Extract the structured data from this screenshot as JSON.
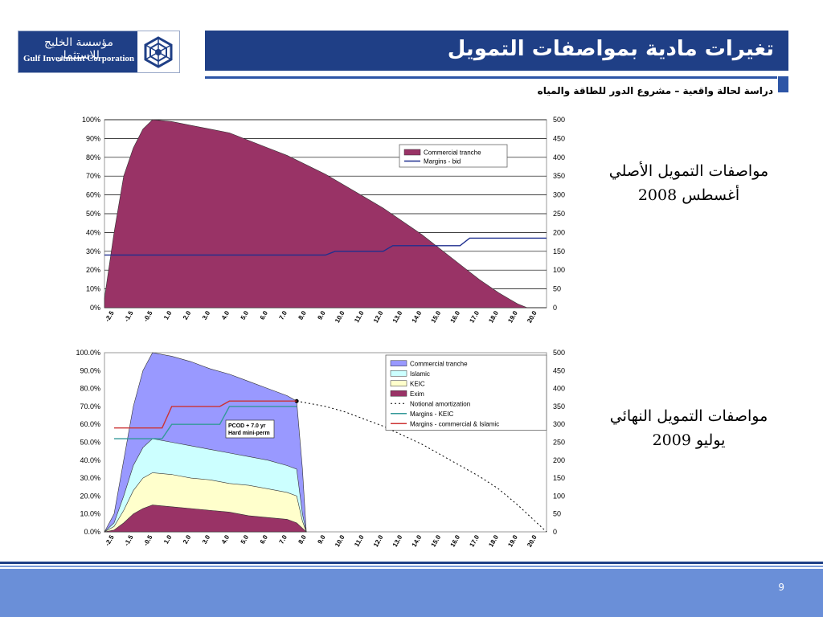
{
  "header": {
    "logo_arabic": "مؤسسة الخليج للاستثمار",
    "logo_english": "Gulf Investment Corporation",
    "title": "تغيرات مادية بمواصفات التمويل",
    "subtitle": "دراسة لحالة واقعية – مشروع الدور للطاقة والمياه"
  },
  "side_labels": {
    "original_line1": "مواصفات التمويل الأصلي",
    "original_line2": "أغسطس 2008",
    "final_line1": "مواصفات التمويل النهائي",
    "final_line2": "يوليو 2009"
  },
  "footer": {
    "page_number": "9"
  },
  "colors": {
    "navy": "#1f3f86",
    "accent": "#2d55a6",
    "footer": "#6a8fd8",
    "commercial_maroon": "#993366",
    "commercial_lavender": "#9999ff",
    "islamic": "#ccffff",
    "keic": "#ffffcc",
    "exim": "#993366"
  },
  "chart_data": [
    {
      "type": "area",
      "x_tick_labels": [
        "-2.5",
        "-1.5",
        "-0.5",
        "1.0",
        "2.0",
        "3.0",
        "4.0",
        "5.0",
        "6.0",
        "7.0",
        "8.0",
        "9.0",
        "10.0",
        "11.0",
        "12.0",
        "13.0",
        "14.0",
        "15.0",
        "16.0",
        "17.0",
        "18.0",
        "19.0",
        "20.0"
      ],
      "xlim": [
        -2.5,
        20.5
      ],
      "ylim_left": [
        0,
        100
      ],
      "y_ticks_left": [
        "0%",
        "10%",
        "20%",
        "30%",
        "40%",
        "50%",
        "60%",
        "70%",
        "80%",
        "90%",
        "100%"
      ],
      "ylim_right": [
        0,
        500
      ],
      "y_ticks_right": [
        "0",
        "50",
        "100",
        "150",
        "200",
        "250",
        "300",
        "350",
        "400",
        "450",
        "500"
      ],
      "legend_position": "top-right",
      "grid": "horizontal",
      "series": [
        {
          "name": "Commercial tranche",
          "kind": "area",
          "axis": "left",
          "color": "#993366",
          "points": [
            [
              -2.5,
              5
            ],
            [
              -2.0,
              40
            ],
            [
              -1.5,
              70
            ],
            [
              -1.0,
              85
            ],
            [
              -0.5,
              95
            ],
            [
              0.0,
              100
            ],
            [
              1.0,
              99
            ],
            [
              2.0,
              97
            ],
            [
              3.0,
              95
            ],
            [
              4.0,
              93
            ],
            [
              5.0,
              89
            ],
            [
              6.0,
              85
            ],
            [
              7.0,
              81
            ],
            [
              8.0,
              76
            ],
            [
              9.0,
              71
            ],
            [
              10.0,
              65
            ],
            [
              11.0,
              59
            ],
            [
              12.0,
              53
            ],
            [
              13.0,
              46
            ],
            [
              14.0,
              39
            ],
            [
              15.0,
              31
            ],
            [
              16.0,
              23
            ],
            [
              17.0,
              15
            ],
            [
              18.0,
              8
            ],
            [
              19.0,
              2
            ],
            [
              19.5,
              0
            ]
          ]
        },
        {
          "name": "Margins - bid",
          "kind": "line",
          "axis": "right",
          "color": "#1f2f8f",
          "points": [
            [
              -2.5,
              140
            ],
            [
              9.0,
              140
            ],
            [
              9.5,
              150
            ],
            [
              12.0,
              150
            ],
            [
              12.5,
              165
            ],
            [
              16.0,
              165
            ],
            [
              16.5,
              185
            ],
            [
              20.5,
              185
            ]
          ]
        }
      ]
    },
    {
      "type": "area",
      "x_tick_labels": [
        "-2.5",
        "-1.5",
        "-0.5",
        "1.0",
        "2.0",
        "3.0",
        "4.0",
        "5.0",
        "6.0",
        "7.0",
        "8.0",
        "9.0",
        "10.0",
        "11.0",
        "12.0",
        "13.0",
        "14.0",
        "15.0",
        "16.0",
        "17.0",
        "18.0",
        "19.0",
        "20.0"
      ],
      "xlim": [
        -2.5,
        20.5
      ],
      "ylim_left": [
        0,
        100
      ],
      "y_ticks_left": [
        "0.0%",
        "10.0%",
        "20.0%",
        "30.0%",
        "40.0%",
        "50.0%",
        "60.0%",
        "70.0%",
        "80.0%",
        "90.0%",
        "100.0%"
      ],
      "ylim_right": [
        0,
        500
      ],
      "y_ticks_right": [
        "0",
        "50",
        "100",
        "150",
        "200",
        "250",
        "300",
        "350",
        "400",
        "450",
        "500"
      ],
      "legend_position": "top-right",
      "grid": "none",
      "annotation": {
        "line1": "PCOD + 7.0 yr",
        "line2": "Hard mini-perm"
      },
      "series": [
        {
          "name": "Commercial tranche",
          "kind": "area",
          "axis": "left",
          "color": "#9999ff",
          "points": [
            [
              -2.5,
              0
            ],
            [
              -2.0,
              10
            ],
            [
              -1.5,
              40
            ],
            [
              -1.0,
              70
            ],
            [
              -0.5,
              90
            ],
            [
              0.0,
              100
            ],
            [
              1.0,
              98
            ],
            [
              2.0,
              95
            ],
            [
              3.0,
              91
            ],
            [
              4.0,
              88
            ],
            [
              5.0,
              84
            ],
            [
              6.0,
              80
            ],
            [
              7.0,
              76
            ],
            [
              7.5,
              73
            ],
            [
              7.8,
              35
            ],
            [
              8.0,
              0
            ]
          ]
        },
        {
          "name": "Islamic",
          "kind": "area",
          "axis": "left",
          "color": "#ccffff",
          "points": [
            [
              -2.5,
              0
            ],
            [
              -2.0,
              5
            ],
            [
              -1.5,
              20
            ],
            [
              -1.0,
              37
            ],
            [
              -0.5,
              47
            ],
            [
              0.0,
              52
            ],
            [
              1.0,
              50
            ],
            [
              2.0,
              48
            ],
            [
              3.0,
              46
            ],
            [
              4.0,
              44
            ],
            [
              5.0,
              42
            ],
            [
              6.0,
              40
            ],
            [
              7.0,
              37
            ],
            [
              7.5,
              35
            ],
            [
              7.8,
              10
            ],
            [
              8.0,
              0
            ]
          ]
        },
        {
          "name": "KEIC",
          "kind": "area",
          "axis": "left",
          "color": "#ffffcc",
          "points": [
            [
              -2.5,
              0
            ],
            [
              -2.0,
              3
            ],
            [
              -1.5,
              12
            ],
            [
              -1.0,
              23
            ],
            [
              -0.5,
              30
            ],
            [
              0.0,
              33
            ],
            [
              1.0,
              32
            ],
            [
              2.0,
              30
            ],
            [
              3.0,
              29
            ],
            [
              4.0,
              27
            ],
            [
              5.0,
              26
            ],
            [
              6.0,
              24
            ],
            [
              7.0,
              22
            ],
            [
              7.5,
              20
            ],
            [
              7.8,
              6
            ],
            [
              8.0,
              0
            ]
          ]
        },
        {
          "name": "Exim",
          "kind": "area",
          "axis": "left",
          "color": "#993366",
          "points": [
            [
              -2.5,
              0
            ],
            [
              -2.0,
              1
            ],
            [
              -1.5,
              5
            ],
            [
              -1.0,
              10
            ],
            [
              -0.5,
              13
            ],
            [
              0.0,
              15
            ],
            [
              1.0,
              14
            ],
            [
              2.0,
              13
            ],
            [
              3.0,
              12
            ],
            [
              4.0,
              11
            ],
            [
              5.0,
              9
            ],
            [
              6.0,
              8
            ],
            [
              7.0,
              7
            ],
            [
              7.5,
              5
            ],
            [
              7.8,
              2
            ],
            [
              8.0,
              0
            ]
          ]
        },
        {
          "name": "Notional amortization",
          "kind": "dotted",
          "axis": "left",
          "color": "#000000",
          "points": [
            [
              7.5,
              73
            ],
            [
              8.0,
              72
            ],
            [
              9.0,
              70
            ],
            [
              10.0,
              67
            ],
            [
              11.0,
              63
            ],
            [
              12.0,
              59
            ],
            [
              13.0,
              54
            ],
            [
              14.0,
              49
            ],
            [
              15.0,
              43
            ],
            [
              16.0,
              37
            ],
            [
              17.0,
              31
            ],
            [
              18.0,
              24
            ],
            [
              19.0,
              15
            ],
            [
              20.0,
              5
            ],
            [
              20.5,
              0
            ]
          ]
        },
        {
          "name": "Margins - KEIC",
          "kind": "line",
          "axis": "right",
          "color": "#339999",
          "points": [
            [
              -2.0,
              260
            ],
            [
              0.5,
              260
            ],
            [
              1.0,
              300
            ],
            [
              3.5,
              300
            ],
            [
              4.0,
              350
            ],
            [
              7.5,
              350
            ]
          ]
        },
        {
          "name": "Margins - commercial & Islamic",
          "kind": "line",
          "axis": "right",
          "color": "#cc3333",
          "points": [
            [
              -2.0,
              290
            ],
            [
              0.5,
              290
            ],
            [
              1.0,
              350
            ],
            [
              3.5,
              350
            ],
            [
              4.0,
              365
            ],
            [
              7.5,
              365
            ]
          ]
        }
      ]
    }
  ]
}
